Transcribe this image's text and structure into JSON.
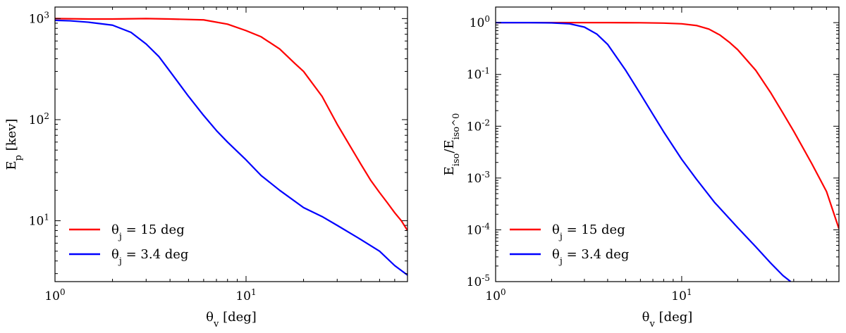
{
  "chart_data": [
    {
      "type": "line",
      "xlabel": "θ_v [deg]",
      "ylabel": "E_p [kev]",
      "xscale": "log",
      "yscale": "log",
      "xlim": [
        1,
        70
      ],
      "ylim": [
        2.5,
        1300
      ],
      "x_ticks": [
        {
          "value": 1,
          "label": "10^0"
        },
        {
          "value": 10,
          "label": "10^1"
        }
      ],
      "y_ticks": [
        {
          "value": 10,
          "label": "10^1"
        },
        {
          "value": 100,
          "label": "10^2"
        },
        {
          "value": 1000,
          "label": "10^3"
        }
      ],
      "legend_position": "lower-left",
      "grid": false,
      "series": [
        {
          "name": "θ_j = 15 deg",
          "color": "#ff0000",
          "x": [
            1,
            1.5,
            2,
            3,
            4,
            6,
            8,
            10,
            12,
            15,
            18,
            20,
            25,
            30,
            35,
            40,
            45,
            50,
            55,
            60,
            65,
            70
          ],
          "y": [
            1000,
            990,
            990,
            1000,
            990,
            970,
            880,
            760,
            660,
            500,
            360,
            300,
            170,
            90,
            55,
            36,
            25,
            19,
            15,
            12,
            10,
            8
          ]
        },
        {
          "name": "θ_j = 3.4 deg",
          "color": "#0000ff",
          "x": [
            1,
            1.2,
            1.5,
            2,
            2.5,
            3,
            3.5,
            4,
            5,
            6,
            7,
            8,
            10,
            12,
            15,
            20,
            25,
            30,
            40,
            50,
            60,
            70
          ],
          "y": [
            960,
            950,
            920,
            860,
            730,
            560,
            420,
            300,
            170,
            110,
            78,
            60,
            40,
            28,
            20,
            13.5,
            11,
            9,
            6.5,
            5,
            3.6,
            2.9
          ]
        }
      ]
    },
    {
      "type": "line",
      "xlabel": "θ_v [deg]",
      "ylabel": "E_iso/E_iso^0",
      "xscale": "log",
      "yscale": "log",
      "xlim": [
        1,
        70
      ],
      "ylim": [
        1e-05,
        2
      ],
      "x_ticks": [
        {
          "value": 1,
          "label": "10^0"
        },
        {
          "value": 10,
          "label": "10^1"
        }
      ],
      "y_ticks": [
        {
          "value": 1e-05,
          "label": "10^-5"
        },
        {
          "value": 0.0001,
          "label": "10^-4"
        },
        {
          "value": 0.001,
          "label": "10^-3"
        },
        {
          "value": 0.01,
          "label": "10^-2"
        },
        {
          "value": 0.1,
          "label": "10^-1"
        },
        {
          "value": 1,
          "label": "10^0"
        }
      ],
      "legend_position": "lower-left",
      "grid": false,
      "series": [
        {
          "name": "θ_j = 15 deg",
          "color": "#ff0000",
          "x": [
            1,
            2,
            4,
            6,
            8,
            10,
            12,
            14,
            16,
            18,
            20,
            25,
            30,
            35,
            40,
            50,
            60,
            70
          ],
          "y": [
            1,
            1,
            1,
            0.995,
            0.98,
            0.95,
            0.88,
            0.75,
            0.58,
            0.42,
            0.3,
            0.12,
            0.045,
            0.018,
            0.008,
            0.0019,
            0.00055,
            0.000105
          ]
        },
        {
          "name": "θ_j = 3.4 deg",
          "color": "#0000ff",
          "x": [
            1,
            1.5,
            2,
            2.5,
            3,
            3.5,
            4,
            5,
            6,
            7,
            8,
            10,
            12,
            15,
            20,
            25,
            30,
            35,
            38.5
          ],
          "y": [
            1,
            1,
            0.99,
            0.95,
            0.82,
            0.6,
            0.38,
            0.12,
            0.042,
            0.017,
            0.0078,
            0.0023,
            0.00095,
            0.00034,
            0.00011,
            4.7e-05,
            2.3e-05,
            1.31e-05,
            1e-05
          ]
        }
      ]
    }
  ]
}
